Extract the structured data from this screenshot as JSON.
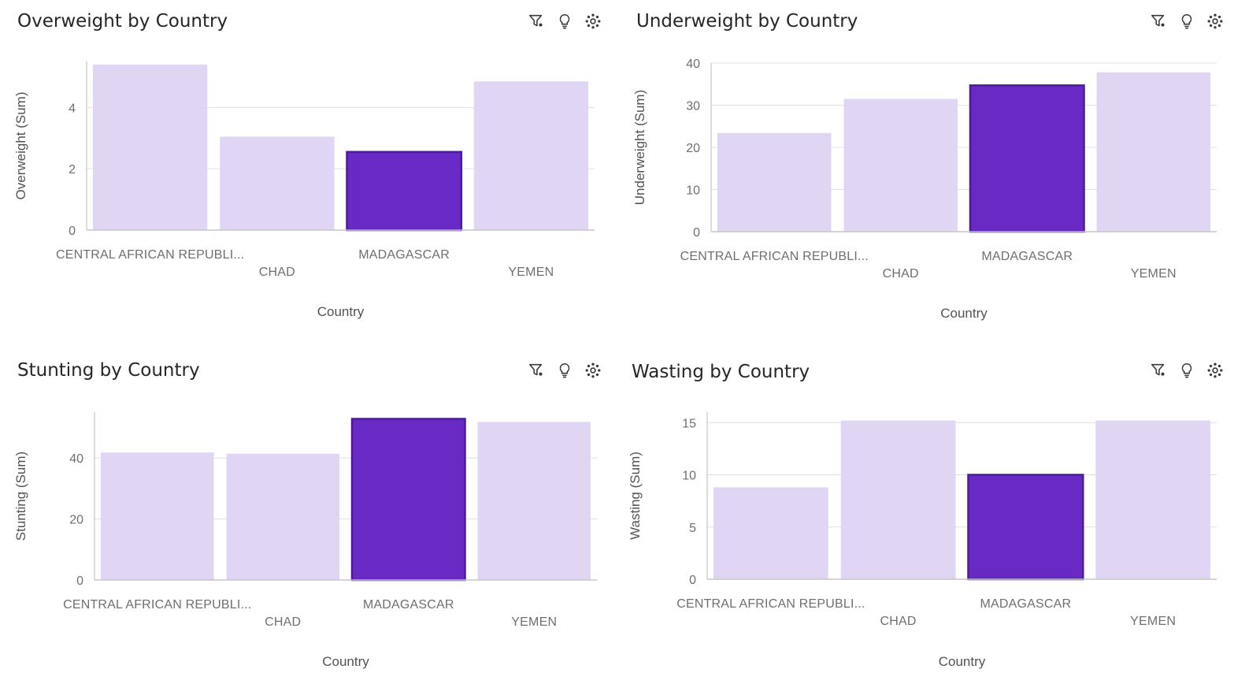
{
  "accent": "#6929c4",
  "muted": "#e0d5f3",
  "toolbar_icons": [
    "filter-icon",
    "lightbulb-icon",
    "settings-icon"
  ],
  "chart_data": [
    {
      "type": "bar",
      "title": "Overweight by Country",
      "xlabel": "Country",
      "ylabel": "Overweight (Sum)",
      "categories": [
        "CENTRAL AFRICAN REPUBLI...",
        "CHAD",
        "MADAGASCAR",
        "YEMEN"
      ],
      "values": [
        5.4,
        3.05,
        2.55,
        4.85
      ],
      "ylim": [
        0,
        5.5
      ],
      "yticks": [
        0,
        2,
        4
      ],
      "highlight": "MADAGASCAR"
    },
    {
      "type": "bar",
      "title": "Underweight by Country",
      "xlabel": "Country",
      "ylabel": "Underweight (Sum)",
      "categories": [
        "CENTRAL AFRICAN REPUBLI...",
        "CHAD",
        "MADAGASCAR",
        "YEMEN"
      ],
      "values": [
        23.4,
        31.5,
        34.7,
        37.8
      ],
      "ylim": [
        0,
        40
      ],
      "yticks": [
        0,
        10,
        20,
        30,
        40
      ],
      "highlight": "MADAGASCAR"
    },
    {
      "type": "bar",
      "title": "Stunting by Country",
      "xlabel": "Country",
      "ylabel": "Stunting (Sum)",
      "categories": [
        "CENTRAL AFRICAN REPUBLI...",
        "CHAD",
        "MADAGASCAR",
        "YEMEN"
      ],
      "values": [
        41.8,
        41.4,
        52.8,
        51.8
      ],
      "ylim": [
        0,
        55
      ],
      "yticks": [
        0,
        20,
        40
      ],
      "highlight": "MADAGASCAR"
    },
    {
      "type": "bar",
      "title": "Wasting by Country",
      "xlabel": "Country",
      "ylabel": "Wasting (Sum)",
      "categories": [
        "CENTRAL AFRICAN REPUBLI...",
        "CHAD",
        "MADAGASCAR",
        "YEMEN"
      ],
      "values": [
        8.8,
        15.2,
        10.0,
        15.2
      ],
      "ylim": [
        0,
        16
      ],
      "yticks": [
        0,
        5,
        10,
        15
      ],
      "highlight": "MADAGASCAR"
    }
  ]
}
